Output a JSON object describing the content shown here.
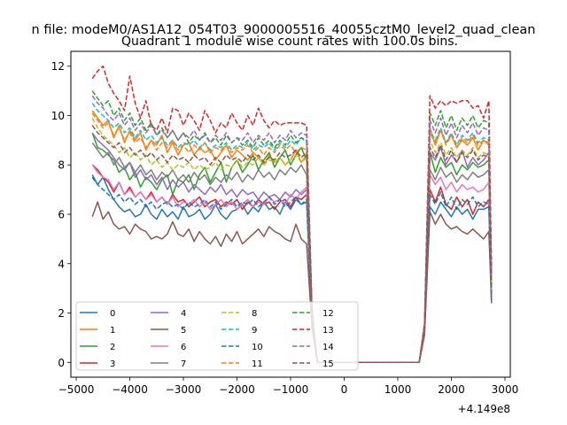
{
  "chart_data": {
    "type": "line",
    "suptitle": "n file: modeM0/AS1A12_054T03_9000005516_40055cztM0_level2_quad_clean",
    "title": "Quadrant 1 module wise count rates with 100.0s bins.",
    "xlabel": "",
    "ylabel": "",
    "x_offset_label": "+4.149e8",
    "xlim": [
      -5100,
      3100
    ],
    "ylim": [
      -0.6,
      12.6
    ],
    "xticks": [
      -5000,
      -4000,
      -3000,
      -2000,
      -1000,
      0,
      1000,
      2000,
      3000
    ],
    "xtick_labels": [
      "−5000",
      "−4000",
      "−3000",
      "−2000",
      "−1000",
      "0",
      "1000",
      "2000",
      "3000"
    ],
    "yticks": [
      0,
      2,
      4,
      6,
      8,
      10,
      12
    ],
    "ytick_labels": [
      "0",
      "2",
      "4",
      "6",
      "8",
      "10",
      "12"
    ],
    "legend_position": "lower-left",
    "x": [
      -4700,
      -4600,
      -4500,
      -4400,
      -4300,
      -4200,
      -4100,
      -4000,
      -3900,
      -3800,
      -3700,
      -3600,
      -3500,
      -3400,
      -3300,
      -3200,
      -3100,
      -3000,
      -2900,
      -2800,
      -2700,
      -2600,
      -2500,
      -2400,
      -2300,
      -2200,
      -2100,
      -2000,
      -1900,
      -1800,
      -1700,
      -1600,
      -1500,
      -1400,
      -1300,
      -1200,
      -1100,
      -1000,
      -900,
      -800,
      -700,
      -600,
      -500,
      -400,
      1400,
      1500,
      1600,
      1700,
      1800,
      1900,
      2000,
      2100,
      2200,
      2300,
      2400,
      2500,
      2600,
      2700,
      2750
    ],
    "series": [
      {
        "name": "0",
        "color": "#1f77b4",
        "dash": "solid",
        "values": [
          7.6,
          7.2,
          7.5,
          7.0,
          6.6,
          6.3,
          6.1,
          6.2,
          5.9,
          6.0,
          6.4,
          6.0,
          5.8,
          6.2,
          5.9,
          6.1,
          5.8,
          6.3,
          5.9,
          6.0,
          6.2,
          5.8,
          6.0,
          6.4,
          6.0,
          5.8,
          6.1,
          6.2,
          6.4,
          6.0,
          6.3,
          6.1,
          6.5,
          6.2,
          6.3,
          6.0,
          6.5,
          6.2,
          6.6,
          6.4,
          6.5,
          1.5,
          0.0,
          0.0,
          0.0,
          1.2,
          6.3,
          6.0,
          6.5,
          6.2,
          5.9,
          6.3,
          6.0,
          6.2,
          5.8,
          6.2,
          6.2,
          6.3,
          2.4
        ]
      },
      {
        "name": "1",
        "color": "#ff7f0e",
        "dash": "solid",
        "values": [
          10.2,
          9.9,
          9.6,
          9.8,
          9.1,
          9.6,
          8.9,
          9.4,
          9.0,
          9.3,
          8.6,
          9.0,
          8.8,
          9.2,
          8.5,
          8.9,
          8.4,
          8.8,
          8.9,
          8.4,
          8.7,
          8.5,
          8.6,
          8.2,
          8.5,
          8.8,
          8.3,
          8.6,
          8.4,
          8.2,
          8.5,
          8.3,
          8.0,
          8.4,
          8.1,
          8.3,
          8.0,
          8.2,
          8.6,
          8.1,
          8.4,
          1.8,
          0.0,
          0.0,
          0.0,
          1.4,
          9.5,
          8.8,
          9.4,
          8.9,
          9.2,
          8.7,
          9.0,
          8.8,
          9.1,
          8.6,
          9.0,
          8.8,
          3.3
        ]
      },
      {
        "name": "2",
        "color": "#2ca02c",
        "dash": "solid",
        "values": [
          9.3,
          8.7,
          8.6,
          8.4,
          8.2,
          7.7,
          7.9,
          7.4,
          7.7,
          7.1,
          7.5,
          7.3,
          7.0,
          7.4,
          7.6,
          6.8,
          7.4,
          7.3,
          7.6,
          7.0,
          7.6,
          7.9,
          7.3,
          7.7,
          8.1,
          7.3,
          7.9,
          8.2,
          7.7,
          8.0,
          8.4,
          7.8,
          8.2,
          8.5,
          7.9,
          8.3,
          8.6,
          8.0,
          8.4,
          8.7,
          8.2,
          1.8,
          0.0,
          0.0,
          0.0,
          1.3,
          8.5,
          7.7,
          8.3,
          7.9,
          8.1,
          7.6,
          8.0,
          7.8,
          8.1,
          7.9,
          8.0,
          8.2,
          2.9
        ]
      },
      {
        "name": "3",
        "color": "#d62728",
        "dash": "solid",
        "values": [
          8.0,
          7.8,
          7.5,
          7.3,
          6.9,
          7.3,
          6.8,
          7.1,
          6.7,
          6.9,
          6.6,
          6.9,
          6.5,
          6.7,
          6.4,
          6.8,
          6.5,
          6.6,
          6.3,
          6.5,
          6.7,
          6.3,
          6.5,
          6.6,
          6.3,
          6.5,
          6.4,
          6.6,
          6.2,
          6.5,
          6.3,
          6.6,
          6.4,
          6.5,
          6.2,
          6.5,
          6.6,
          6.3,
          6.7,
          6.6,
          6.8,
          1.7,
          0.0,
          0.0,
          0.0,
          1.3,
          7.0,
          6.5,
          7.1,
          6.4,
          6.2,
          6.7,
          6.3,
          6.6,
          6.0,
          6.5,
          6.3,
          6.6,
          2.8
        ]
      },
      {
        "name": "4",
        "color": "#9467bd",
        "dash": "solid",
        "values": [
          9.3,
          9.0,
          8.8,
          8.6,
          8.3,
          8.0,
          7.8,
          8.1,
          7.5,
          7.8,
          7.4,
          7.6,
          7.2,
          7.5,
          7.0,
          7.4,
          7.1,
          7.3,
          6.9,
          7.2,
          7.0,
          6.8,
          7.1,
          6.9,
          7.2,
          6.8,
          7.0,
          6.7,
          7.0,
          6.8,
          6.9,
          6.6,
          6.9,
          6.7,
          6.8,
          6.6,
          6.9,
          6.7,
          7.0,
          6.8,
          7.0,
          1.7,
          0.0,
          0.0,
          0.0,
          1.3,
          8.5,
          8.2,
          8.7,
          8.0,
          8.4,
          8.1,
          8.6,
          7.9,
          8.3,
          8.0,
          8.2,
          8.5,
          3.0
        ]
      },
      {
        "name": "5",
        "color": "#8c564b",
        "dash": "solid",
        "values": [
          5.9,
          6.5,
          5.8,
          6.1,
          5.6,
          5.4,
          5.5,
          5.2,
          5.6,
          5.4,
          5.3,
          5.0,
          5.1,
          5.0,
          5.2,
          5.7,
          5.2,
          5.1,
          5.4,
          4.9,
          5.3,
          5.0,
          4.8,
          5.1,
          4.7,
          5.2,
          4.9,
          5.3,
          4.8,
          5.0,
          5.2,
          5.4,
          5.1,
          5.5,
          5.3,
          5.2,
          5.0,
          4.9,
          5.6,
          5.0,
          4.8,
          1.4,
          0.0,
          0.0,
          0.0,
          1.1,
          6.1,
          5.6,
          6.0,
          5.6,
          5.4,
          5.5,
          5.3,
          5.2,
          5.4,
          5.2,
          5.0,
          5.3,
          2.4
        ]
      },
      {
        "name": "6",
        "color": "#e377c2",
        "dash": "solid",
        "values": [
          8.0,
          7.7,
          7.5,
          7.4,
          7.0,
          7.3,
          6.8,
          7.0,
          6.7,
          6.9,
          6.6,
          6.8,
          6.5,
          6.7,
          6.4,
          6.7,
          6.3,
          6.5,
          6.4,
          6.6,
          6.3,
          6.5,
          6.2,
          6.4,
          6.6,
          6.3,
          6.5,
          6.2,
          6.4,
          6.6,
          6.3,
          6.5,
          6.4,
          6.7,
          6.5,
          6.6,
          6.4,
          6.8,
          6.6,
          6.9,
          7.1,
          1.8,
          0.0,
          0.0,
          0.0,
          1.3,
          7.6,
          7.2,
          7.5,
          7.0,
          7.3,
          6.9,
          7.2,
          7.0,
          7.1,
          6.9,
          7.0,
          7.3,
          2.9
        ]
      },
      {
        "name": "7",
        "color": "#7f7f7f",
        "dash": "solid",
        "values": [
          8.9,
          8.6,
          8.3,
          8.5,
          8.0,
          8.3,
          7.9,
          8.1,
          7.7,
          8.0,
          7.6,
          7.8,
          7.4,
          7.7,
          7.5,
          7.8,
          7.4,
          7.6,
          7.3,
          7.7,
          7.4,
          7.6,
          7.2,
          7.5,
          7.3,
          7.6,
          7.4,
          7.7,
          7.3,
          7.6,
          7.4,
          7.8,
          7.5,
          7.7,
          7.4,
          7.8,
          7.6,
          7.9,
          7.7,
          8.0,
          7.6,
          1.9,
          0.0,
          0.0,
          0.0,
          1.4,
          7.8,
          7.4,
          7.9,
          7.5,
          7.7,
          7.3,
          7.6,
          7.4,
          7.7,
          7.5,
          7.6,
          7.8,
          3.0
        ]
      },
      {
        "name": "8",
        "color": "#bcbd22",
        "dash": "dashed",
        "values": [
          9.9,
          9.5,
          9.2,
          9.0,
          8.8,
          8.5,
          8.7,
          8.3,
          8.5,
          8.2,
          8.4,
          8.0,
          8.2,
          7.9,
          8.1,
          7.8,
          8.0,
          7.9,
          8.1,
          7.8,
          8.0,
          7.8,
          7.9,
          8.1,
          7.8,
          8.0,
          7.9,
          8.2,
          7.9,
          8.1,
          8.0,
          8.3,
          8.0,
          8.2,
          8.1,
          8.3,
          8.0,
          8.2,
          8.4,
          8.1,
          8.3,
          1.9,
          0.0,
          0.0,
          0.0,
          1.4,
          9.0,
          8.5,
          8.9,
          8.4,
          8.7,
          8.3,
          8.6,
          8.4,
          8.7,
          8.3,
          8.5,
          8.4,
          3.2
        ]
      },
      {
        "name": "9",
        "color": "#17becf",
        "dash": "dashed",
        "values": [
          10.5,
          10.2,
          10.0,
          9.8,
          9.5,
          9.7,
          9.3,
          9.5,
          9.1,
          9.4,
          9.0,
          9.2,
          8.9,
          9.1,
          8.8,
          9.0,
          8.7,
          8.9,
          8.8,
          9.0,
          8.7,
          8.9,
          8.6,
          8.8,
          8.7,
          8.9,
          8.6,
          8.8,
          8.7,
          8.9,
          8.6,
          8.8,
          8.7,
          8.9,
          8.6,
          8.9,
          8.7,
          9.0,
          8.8,
          9.1,
          8.9,
          2.0,
          0.0,
          0.0,
          0.0,
          1.5,
          9.4,
          9.0,
          9.5,
          8.9,
          9.3,
          8.8,
          9.2,
          9.0,
          9.3,
          8.9,
          9.1,
          9.0,
          3.4
        ]
      },
      {
        "name": "10",
        "color": "#1f77b4",
        "dash": "dashed",
        "values": [
          7.5,
          7.2,
          7.0,
          6.8,
          6.6,
          6.8,
          6.5,
          6.7,
          6.4,
          6.6,
          6.3,
          6.5,
          6.2,
          6.4,
          6.5,
          6.3,
          6.4,
          6.2,
          6.5,
          6.3,
          6.4,
          6.6,
          6.3,
          6.5,
          6.2,
          6.4,
          6.6,
          6.3,
          6.5,
          6.4,
          6.6,
          6.3,
          6.5,
          6.7,
          6.4,
          6.6,
          6.3,
          6.5,
          6.7,
          6.4,
          6.6,
          1.7,
          0.0,
          0.0,
          0.0,
          1.3,
          6.8,
          6.4,
          6.9,
          6.3,
          6.7,
          6.2,
          6.6,
          6.4,
          6.7,
          6.3,
          6.5,
          6.4,
          2.6
        ]
      },
      {
        "name": "11",
        "color": "#ff7f0e",
        "dash": "dashed",
        "values": [
          10.1,
          9.8,
          9.5,
          9.7,
          9.2,
          9.5,
          9.0,
          9.3,
          8.9,
          9.1,
          8.7,
          9.0,
          8.6,
          8.9,
          8.7,
          9.0,
          8.6,
          8.8,
          8.5,
          8.8,
          8.6,
          8.9,
          8.5,
          8.7,
          8.6,
          8.8,
          8.5,
          8.7,
          8.6,
          8.8,
          8.5,
          8.7,
          8.4,
          8.7,
          8.5,
          8.8,
          8.6,
          8.8,
          8.5,
          8.7,
          8.6,
          1.9,
          0.0,
          0.0,
          0.0,
          1.4,
          9.3,
          8.9,
          9.4,
          8.8,
          9.2,
          8.7,
          9.1,
          8.9,
          9.2,
          8.8,
          9.0,
          8.9,
          3.3
        ]
      },
      {
        "name": "12",
        "color": "#2ca02c",
        "dash": "dashed",
        "values": [
          11.0,
          10.7,
          10.4,
          10.6,
          10.0,
          10.3,
          9.8,
          10.1,
          9.6,
          9.9,
          9.4,
          9.7,
          9.2,
          9.5,
          9.1,
          9.4,
          9.0,
          9.3,
          8.9,
          9.2,
          9.0,
          9.3,
          8.9,
          9.1,
          8.8,
          9.2,
          8.9,
          9.1,
          8.8,
          9.0,
          8.7,
          9.1,
          8.8,
          9.0,
          8.7,
          9.0,
          8.8,
          9.2,
          8.9,
          9.1,
          9.0,
          2.1,
          0.0,
          0.0,
          0.0,
          1.5,
          10.1,
          9.6,
          10.2,
          9.5,
          10.0,
          9.4,
          9.9,
          9.6,
          10.0,
          9.5,
          9.8,
          9.7,
          3.6
        ]
      },
      {
        "name": "13",
        "color": "#d62728",
        "dash": "dashed",
        "values": [
          11.5,
          11.8,
          12.0,
          11.3,
          10.9,
          10.6,
          10.2,
          11.6,
          10.5,
          9.9,
          10.6,
          9.6,
          9.4,
          9.9,
          9.3,
          10.3,
          10.2,
          9.6,
          10.1,
          9.8,
          9.4,
          10.2,
          9.8,
          9.3,
          9.7,
          9.5,
          10.1,
          9.7,
          9.4,
          10.0,
          9.6,
          10.3,
          9.8,
          9.5,
          9.8,
          9.6,
          9.7,
          9.7,
          9.7,
          9.7,
          9.6,
          2.2,
          0.0,
          0.0,
          0.0,
          1.6,
          10.8,
          10.3,
          10.6,
          10.4,
          10.6,
          10.5,
          10.6,
          10.6,
          10.3,
          10.4,
          9.9,
          10.6,
          3.8
        ]
      },
      {
        "name": "14",
        "color": "#9467bd",
        "dash": "dashed",
        "values": [
          10.8,
          10.5,
          10.3,
          10.0,
          9.8,
          10.1,
          9.6,
          9.9,
          9.4,
          9.7,
          9.3,
          9.6,
          9.2,
          9.4,
          9.1,
          9.4,
          9.0,
          9.3,
          9.1,
          9.4,
          9.0,
          9.2,
          8.9,
          9.2,
          9.0,
          9.3,
          8.9,
          9.1,
          9.0,
          9.3,
          8.9,
          9.2,
          9.0,
          9.3,
          8.9,
          9.2,
          9.0,
          9.4,
          9.1,
          9.3,
          9.2,
          2.0,
          0.0,
          0.0,
          0.0,
          1.5,
          9.8,
          9.3,
          9.9,
          9.2,
          9.7,
          9.1,
          9.6,
          9.3,
          9.7,
          9.2,
          9.5,
          9.4,
          3.5
        ]
      },
      {
        "name": "15",
        "color": "#8c564b",
        "dash": "dashed",
        "values": [
          9.6,
          9.3,
          9.1,
          8.9,
          8.7,
          8.9,
          8.5,
          8.7,
          8.4,
          8.6,
          8.3,
          8.5,
          8.2,
          8.4,
          8.1,
          8.4,
          8.2,
          8.3,
          8.1,
          8.4,
          8.2,
          8.3,
          8.0,
          8.3,
          8.1,
          8.4,
          8.2,
          8.3,
          8.1,
          8.4,
          8.2,
          8.4,
          8.1,
          8.3,
          8.2,
          8.5,
          8.3,
          8.4,
          8.6,
          8.3,
          8.5,
          1.9,
          0.0,
          0.0,
          0.0,
          1.4,
          8.7,
          8.3,
          8.8,
          8.2,
          8.6,
          8.1,
          8.5,
          8.3,
          8.6,
          8.2,
          8.4,
          8.3,
          3.1
        ]
      }
    ]
  }
}
